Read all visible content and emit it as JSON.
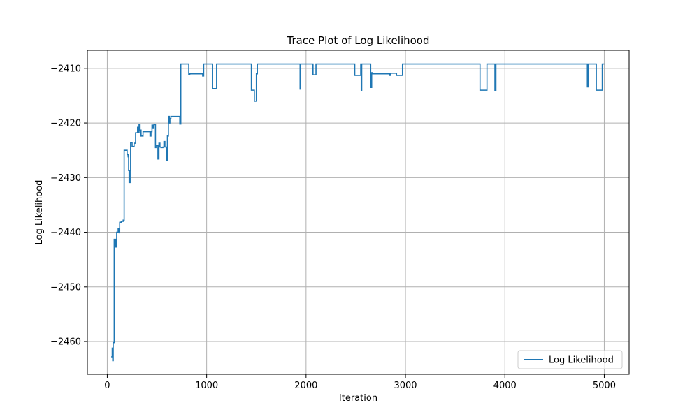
{
  "chart_data": {
    "type": "line",
    "title": "Trace Plot of Log Likelihood",
    "xlabel": "Iteration",
    "ylabel": "Log Likelihood",
    "xlim": [
      -200,
      5250
    ],
    "ylim": [
      -2466,
      -2406.7
    ],
    "xticks": [
      0,
      1000,
      2000,
      3000,
      4000,
      5000
    ],
    "xtick_labels": [
      "0",
      "1000",
      "2000",
      "3000",
      "4000",
      "5000"
    ],
    "yticks": [
      -2460,
      -2450,
      -2440,
      -2430,
      -2420,
      -2410
    ],
    "ytick_labels": [
      "−2460",
      "−2450",
      "−2440",
      "−2430",
      "−2420",
      "−2410"
    ],
    "grid": true,
    "legend": {
      "position": "lower-right",
      "entries": [
        "Log Likelihood"
      ]
    },
    "colors": {
      "series": "#1f77b4",
      "grid": "#b0b0b0",
      "axis": "#000000"
    },
    "series": [
      {
        "name": "Log Likelihood",
        "step": true,
        "points": [
          [
            40,
            -2462.8
          ],
          [
            50,
            -2461.2
          ],
          [
            55,
            -2463.5
          ],
          [
            60,
            -2460.2
          ],
          [
            70,
            -2441.3
          ],
          [
            75,
            -2442.7
          ],
          [
            80,
            -2441.3
          ],
          [
            90,
            -2442.7
          ],
          [
            95,
            -2440.0
          ],
          [
            110,
            -2439.3
          ],
          [
            120,
            -2440.1
          ],
          [
            125,
            -2438.2
          ],
          [
            140,
            -2438.0
          ],
          [
            160,
            -2437.8
          ],
          [
            170,
            -2425.0
          ],
          [
            200,
            -2425.8
          ],
          [
            210,
            -2426.2
          ],
          [
            215,
            -2428.7
          ],
          [
            220,
            -2430.9
          ],
          [
            230,
            -2428.7
          ],
          [
            235,
            -2423.6
          ],
          [
            250,
            -2424.3
          ],
          [
            270,
            -2423.7
          ],
          [
            285,
            -2421.8
          ],
          [
            305,
            -2420.8
          ],
          [
            310,
            -2421.8
          ],
          [
            320,
            -2420.3
          ],
          [
            330,
            -2421.3
          ],
          [
            340,
            -2422.4
          ],
          [
            360,
            -2421.6
          ],
          [
            380,
            -2421.6
          ],
          [
            420,
            -2421.6
          ],
          [
            430,
            -2422.4
          ],
          [
            440,
            -2421.6
          ],
          [
            450,
            -2420.4
          ],
          [
            460,
            -2421.0
          ],
          [
            470,
            -2420.3
          ],
          [
            485,
            -2424.5
          ],
          [
            490,
            -2424.1
          ],
          [
            510,
            -2426.6
          ],
          [
            520,
            -2423.7
          ],
          [
            530,
            -2424.4
          ],
          [
            540,
            -2424.5
          ],
          [
            560,
            -2424.4
          ],
          [
            570,
            -2423.4
          ],
          [
            580,
            -2424.4
          ],
          [
            600,
            -2426.8
          ],
          [
            605,
            -2422.4
          ],
          [
            615,
            -2418.8
          ],
          [
            625,
            -2420.0
          ],
          [
            630,
            -2419.2
          ],
          [
            640,
            -2418.8
          ],
          [
            700,
            -2418.8
          ],
          [
            730,
            -2420.2
          ],
          [
            740,
            -2409.2
          ],
          [
            800,
            -2409.2
          ],
          [
            820,
            -2411.2
          ],
          [
            830,
            -2411.0
          ],
          [
            950,
            -2411.0
          ],
          [
            960,
            -2411.4
          ],
          [
            970,
            -2409.2
          ],
          [
            1050,
            -2409.2
          ],
          [
            1060,
            -2413.7
          ],
          [
            1080,
            -2413.7
          ],
          [
            1100,
            -2409.2
          ],
          [
            1440,
            -2409.2
          ],
          [
            1450,
            -2414.0
          ],
          [
            1480,
            -2416.0
          ],
          [
            1500,
            -2411.0
          ],
          [
            1510,
            -2409.2
          ],
          [
            1930,
            -2409.2
          ],
          [
            1940,
            -2413.8
          ],
          [
            1945,
            -2409.2
          ],
          [
            2060,
            -2409.2
          ],
          [
            2070,
            -2411.2
          ],
          [
            2090,
            -2411.2
          ],
          [
            2100,
            -2409.2
          ],
          [
            2480,
            -2409.2
          ],
          [
            2490,
            -2411.3
          ],
          [
            2540,
            -2411.3
          ],
          [
            2550,
            -2409.2
          ],
          [
            2555,
            -2414.1
          ],
          [
            2560,
            -2409.2
          ],
          [
            2640,
            -2409.2
          ],
          [
            2650,
            -2413.5
          ],
          [
            2660,
            -2410.8
          ],
          [
            2670,
            -2411.0
          ],
          [
            2830,
            -2411.0
          ],
          [
            2840,
            -2411.3
          ],
          [
            2850,
            -2410.9
          ],
          [
            2900,
            -2410.9
          ],
          [
            2910,
            -2411.3
          ],
          [
            2960,
            -2411.3
          ],
          [
            2970,
            -2409.2
          ],
          [
            3740,
            -2409.2
          ],
          [
            3750,
            -2414.0
          ],
          [
            3810,
            -2414.0
          ],
          [
            3820,
            -2409.2
          ],
          [
            3890,
            -2409.2
          ],
          [
            3900,
            -2414.1
          ],
          [
            3910,
            -2409.2
          ],
          [
            4820,
            -2409.2
          ],
          [
            4830,
            -2413.4
          ],
          [
            4840,
            -2409.2
          ],
          [
            4910,
            -2409.2
          ],
          [
            4920,
            -2414.0
          ],
          [
            4970,
            -2414.0
          ],
          [
            4980,
            -2409.2
          ],
          [
            5000,
            -2409.2
          ]
        ]
      }
    ]
  }
}
